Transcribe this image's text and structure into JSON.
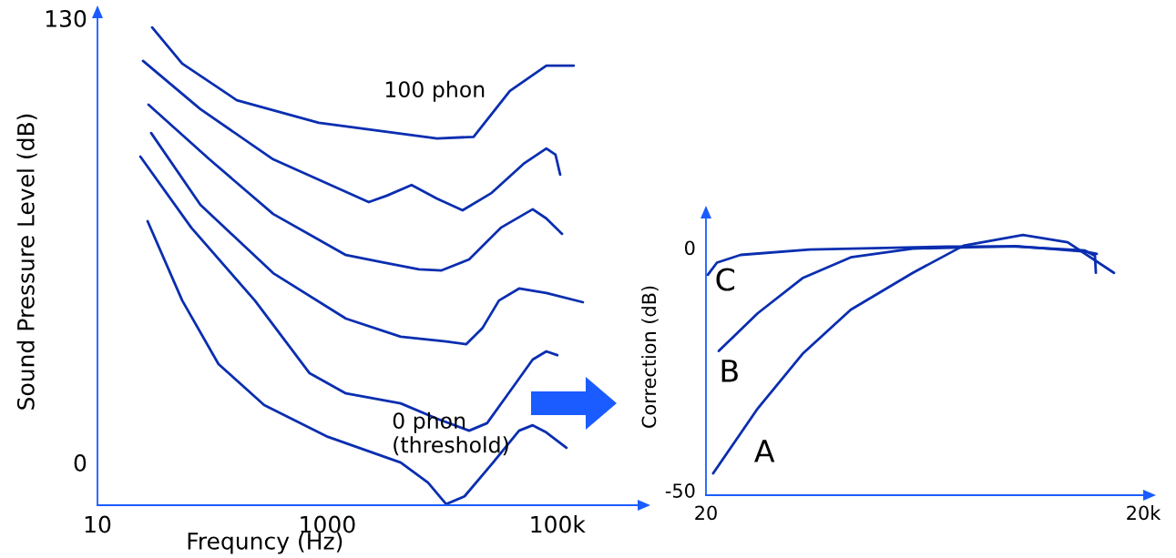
{
  "chart_data": [
    {
      "type": "line",
      "xlabel": "Frequncy (Hz)",
      "ylabel": "Sound Pressure Level (dB)",
      "log": "x",
      "xlim": [
        10,
        500000
      ],
      "ylim": [
        -12.5,
        130
      ],
      "xticks": [
        {
          "value": 10,
          "label": "10"
        },
        {
          "value": 1000,
          "label": "1000"
        },
        {
          "value": 100000,
          "label": "100k"
        }
      ],
      "yticks": [
        0,
        130
      ],
      "grid": false,
      "legend": false,
      "series": [
        {
          "name": "100 phon",
          "color": "#0a2eb0",
          "x": [
            29.9,
            54.6,
            163,
            841,
            9000,
            18700,
            38700,
            80300,
            139000
          ],
          "values": [
            127.3,
            116.7,
            106.0,
            99.4,
            94.8,
            95.3,
            108.7,
            116.1,
            116.1
          ]
        },
        {
          "color": "#0a2eb0",
          "x": [
            24.9,
            78.6,
            338,
            2290,
            3300,
            5400,
            9000,
            15000,
            26900,
            50900,
            80300,
            96400,
            106000
          ],
          "values": [
            117.5,
            103.4,
            88.7,
            76.2,
            78.1,
            81.2,
            77.2,
            73.8,
            78.9,
            87.4,
            91.9,
            90.1,
            84.2
          ]
        },
        {
          "color": "#0a2eb0",
          "x": [
            27.8,
            94.2,
            338,
            1450,
            3010,
            6260,
            9860,
            17100,
            32300,
            61100,
            80300,
            110000
          ],
          "values": [
            104.7,
            88.7,
            72.7,
            60.7,
            58.6,
            56.5,
            56.2,
            59.4,
            68.7,
            74.1,
            71.4,
            66.9
          ]
        },
        {
          "color": "#0a2eb0",
          "x": [
            29.3,
            78.6,
            338,
            1450,
            4340,
            10800,
            16100,
            22400,
            31100,
            46500,
            80300,
            167000
          ],
          "values": [
            96.4,
            75.4,
            55.4,
            42.1,
            36.8,
            35.4,
            34.6,
            39.4,
            47.4,
            50.9,
            49.6,
            46.9
          ]
        },
        {
          "color": "#0a2eb0",
          "x": [
            23.6,
            65.5,
            234,
            701,
            1450,
            4340,
            9000,
            17100,
            24500,
            38700,
            61100,
            80300,
            100000
          ],
          "values": [
            89.5,
            68.7,
            47.4,
            26.1,
            20.2,
            17.3,
            12.8,
            9.3,
            11.5,
            20.8,
            30.1,
            32.5,
            31.4
          ]
        },
        {
          "name": "0 phon\n(threshold)",
          "color": "#0a2eb0",
          "x": [
            27.3,
            54.6,
            113,
            282,
            1010,
            4340,
            7500,
            10800,
            15600,
            26900,
            46500,
            61100,
            80300,
            120000
          ],
          "values": [
            70.6,
            47.4,
            28.8,
            16.8,
            7.5,
            0,
            -5.9,
            -12.2,
            -9.9,
            -0.5,
            9.3,
            10.9,
            8.8,
            4.3
          ]
        }
      ]
    },
    {
      "type": "line",
      "ylabel": "Correction (dB)",
      "log": "x",
      "xlim": [
        20,
        20000
      ],
      "ylim": [
        -51,
        6
      ],
      "xticks": [
        {
          "value": 20,
          "label": "20"
        },
        {
          "value": 20000,
          "label": "20k"
        }
      ],
      "yticks": [
        {
          "value": -50,
          "label": "-50"
        },
        0
      ],
      "grid": false,
      "legend": false,
      "series": [
        {
          "name": "C",
          "color": "#0a2eb0",
          "x": [
            20.6,
            23.8,
            34.6,
            103,
            907,
            2670,
            7960,
            9330,
            9470
          ],
          "values": [
            -5.6,
            -3.1,
            -1.5,
            -0.4,
            0.2,
            0.2,
            -0.6,
            -1.7,
            -5.2
          ]
        },
        {
          "name": "B",
          "color": "#0a2eb0",
          "x": [
            24.5,
            45.4,
            91.9,
            197,
            525,
            2670,
            7960,
            9600
          ],
          "values": [
            -21.3,
            -13.5,
            -6.3,
            -2.0,
            -0.2,
            0.3,
            -0.8,
            -1.3
          ]
        },
        {
          "name": "A",
          "color": "#0a2eb0",
          "x": [
            22.4,
            45.4,
            91.9,
            197,
            525,
            1170,
            2990,
            6060,
            12600
          ],
          "values": [
            -46.5,
            -33.1,
            -21.9,
            -12.8,
            -5.2,
            0.4,
            2.6,
            1.1,
            -5.2
          ]
        }
      ]
    }
  ]
}
